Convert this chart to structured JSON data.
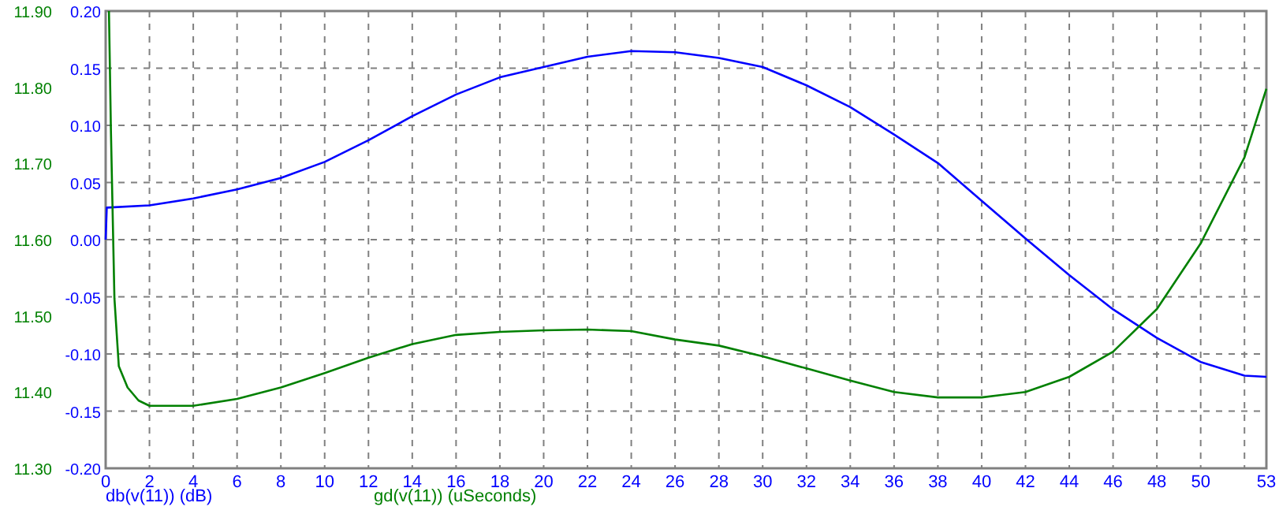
{
  "chart_data": {
    "type": "line",
    "xlim": [
      0,
      53
    ],
    "xticks": [
      0,
      2,
      4,
      6,
      8,
      10,
      12,
      14,
      16,
      18,
      20,
      22,
      24,
      26,
      28,
      30,
      32,
      34,
      36,
      38,
      40,
      42,
      44,
      46,
      48,
      50,
      {
        "value": 52,
        "label": null
      },
      53
    ],
    "ylim": [
      -0.2,
      0.2
    ],
    "yticks": [
      {
        "value": 0.2,
        "label": "0.20"
      },
      {
        "value": 0.15,
        "label": "0.15"
      },
      {
        "value": 0.1,
        "label": "0.10"
      },
      {
        "value": 0.05,
        "label": "0.05"
      },
      {
        "value": 0,
        "label": "0.00"
      },
      {
        "value": -0.05,
        "label": "-0.05"
      },
      {
        "value": -0.1,
        "label": "-0.10"
      },
      {
        "value": -0.15,
        "label": "-0.15"
      },
      {
        "value": -0.2,
        "label": "-0.20"
      }
    ],
    "y2lim": [
      11.3,
      11.9
    ],
    "y2ticks": [
      {
        "value": 11.9,
        "label": "11.90"
      },
      {
        "value": 11.8,
        "label": "11.80"
      },
      {
        "value": 11.7,
        "label": "11.70"
      },
      {
        "value": 11.6,
        "label": "11.60"
      },
      {
        "value": 11.5,
        "label": "11.50"
      },
      {
        "value": 11.4,
        "label": "11.40"
      },
      {
        "value": 11.3,
        "label": "11.30"
      }
    ],
    "grid": true,
    "legend": "bottom",
    "line_style": "solid",
    "series": [
      {
        "name": "db(v(11)) (dB)",
        "color": "#0000ff",
        "x": [
          0,
          0.05,
          2,
          4,
          6,
          8,
          10,
          12,
          14,
          16,
          18,
          20,
          22,
          24,
          26,
          28,
          30,
          32,
          34,
          36,
          38,
          40,
          42,
          44,
          46,
          48,
          50,
          52,
          53
        ],
        "values": [
          0,
          0.028,
          0.03,
          0.036,
          0.044,
          0.054,
          0.068,
          0.087,
          0.108,
          0.127,
          0.142,
          0.151,
          0.16,
          0.165,
          0.164,
          0.159,
          0.151,
          0.135,
          0.116,
          0.092,
          0.067,
          0.034,
          0.001,
          -0.031,
          -0.061,
          -0.086,
          -0.107,
          -0.119,
          -0.12
        ]
      },
      {
        "name": "gd(v(11)) (uSeconds)",
        "color": "#008000",
        "axis": "y2",
        "x": [
          0.15,
          0.24,
          0.4,
          0.6,
          1,
          1.5,
          2,
          4,
          6,
          8,
          10,
          12,
          14,
          16,
          18,
          20,
          22,
          24,
          26,
          28,
          30,
          32,
          34,
          36,
          38,
          40,
          42,
          44,
          46,
          48,
          50,
          52,
          53
        ],
        "values": [
          11.9,
          11.743,
          11.523,
          11.434,
          11.406,
          11.389,
          11.382,
          11.382,
          11.391,
          11.406,
          11.425,
          11.445,
          11.463,
          11.475,
          11.479,
          11.481,
          11.482,
          11.48,
          11.469,
          11.461,
          11.447,
          11.431,
          11.415,
          11.4,
          11.393,
          11.393,
          11.4,
          11.42,
          11.453,
          11.509,
          11.595,
          11.708,
          11.798
        ]
      }
    ]
  }
}
